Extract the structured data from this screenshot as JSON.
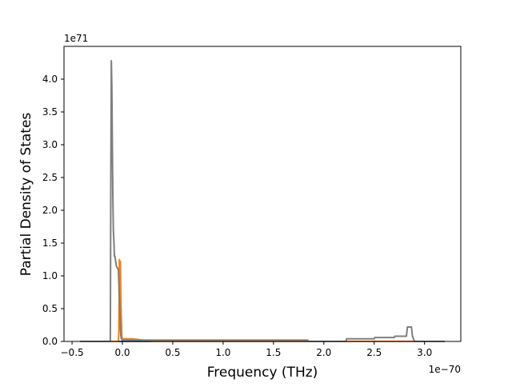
{
  "chart_data": {
    "type": "line",
    "title": "",
    "xlabel": "Frequency (THz)",
    "ylabel": "Partial Density of States",
    "x_offset_text": "1e−70",
    "y_offset_text": "1e71",
    "x_ticks": [
      {
        "value": -0.5,
        "label": "−0.5"
      },
      {
        "value": 0.0,
        "label": "0.0"
      },
      {
        "value": 0.5,
        "label": "0.5"
      },
      {
        "value": 1.0,
        "label": "1.0"
      },
      {
        "value": 1.5,
        "label": "1.5"
      },
      {
        "value": 2.0,
        "label": "2.0"
      },
      {
        "value": 2.5,
        "label": "2.5"
      },
      {
        "value": 3.0,
        "label": "3.0"
      }
    ],
    "y_ticks": [
      {
        "value": 0.0,
        "label": "0.0"
      },
      {
        "value": 0.5,
        "label": "0.5"
      },
      {
        "value": 1.0,
        "label": "1.0"
      },
      {
        "value": 1.5,
        "label": "1.5"
      },
      {
        "value": 2.0,
        "label": "2.0"
      },
      {
        "value": 2.5,
        "label": "2.5"
      },
      {
        "value": 3.0,
        "label": "3.0"
      },
      {
        "value": 3.5,
        "label": "3.5"
      },
      {
        "value": 4.0,
        "label": "4.0"
      }
    ],
    "xlim": [
      -0.58,
      3.36
    ],
    "ylim": [
      0.0,
      4.5
    ],
    "grid": false,
    "legend": "none",
    "series": [
      {
        "color": "#1f77b4",
        "x": [
          -0.42,
          3.2
        ],
        "y": [
          0.0,
          0.0
        ]
      },
      {
        "color": "#ff7f0e",
        "x": [
          -0.42,
          -0.04,
          -0.035,
          -0.03,
          -0.025,
          -0.02,
          -0.015,
          -0.005,
          0.0,
          0.1,
          0.3,
          3.2
        ],
        "y": [
          0.0,
          0.0,
          0.15,
          1.25,
          0.4,
          1.22,
          0.6,
          0.06,
          0.04,
          0.04,
          0.0,
          0.0
        ]
      },
      {
        "color": "#7f7f7f",
        "x": [
          -0.42,
          -0.12,
          -0.115,
          -0.11,
          -0.105,
          -0.1,
          -0.095,
          -0.09,
          -0.085,
          -0.08,
          -0.075,
          -0.07,
          -0.06,
          -0.05,
          -0.04,
          -0.03,
          -0.025,
          -0.02,
          -0.015,
          -0.01,
          0.0,
          0.3,
          1.84,
          1.845,
          2.22,
          2.225,
          2.5,
          2.505,
          2.7,
          2.705,
          2.82,
          2.83,
          2.86,
          2.87,
          2.88,
          2.9,
          3.2
        ],
        "y": [
          0.0,
          0.0,
          2.5,
          4.28,
          3.9,
          3.0,
          2.2,
          1.7,
          1.55,
          1.3,
          1.3,
          1.25,
          1.15,
          1.12,
          1.1,
          0.65,
          0.45,
          0.2,
          0.08,
          0.04,
          0.02,
          0.02,
          0.02,
          0.0,
          0.0,
          0.04,
          0.04,
          0.06,
          0.06,
          0.08,
          0.08,
          0.22,
          0.22,
          0.22,
          0.08,
          0.0,
          0.0
        ]
      }
    ]
  }
}
